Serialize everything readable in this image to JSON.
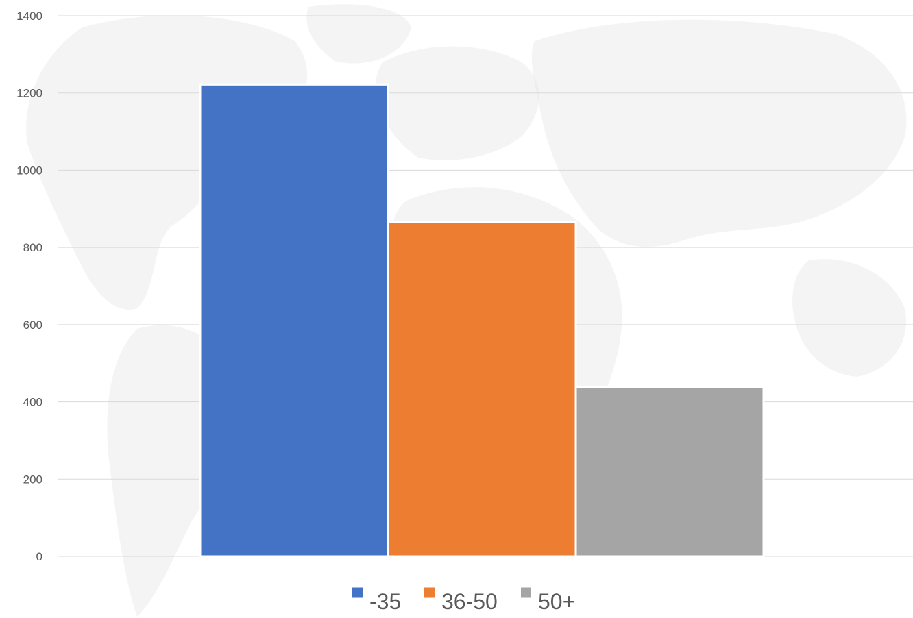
{
  "chart_data": {
    "type": "bar",
    "categories": [
      ""
    ],
    "series": [
      {
        "name": "-35",
        "values": [
          1222
        ],
        "color": "#4472c4"
      },
      {
        "name": "36-50",
        "values": [
          866
        ],
        "color": "#ed7d31"
      },
      {
        "name": "50+",
        "values": [
          438
        ],
        "color": "#a5a5a5"
      }
    ],
    "title": "",
    "xlabel": "",
    "ylabel": "",
    "ylim": [
      0,
      1400
    ],
    "yticks": [
      0,
      200,
      400,
      600,
      800,
      1000,
      1200,
      1400
    ],
    "grid": true,
    "legend_position": "bottom",
    "background": "world-map-watermark"
  }
}
